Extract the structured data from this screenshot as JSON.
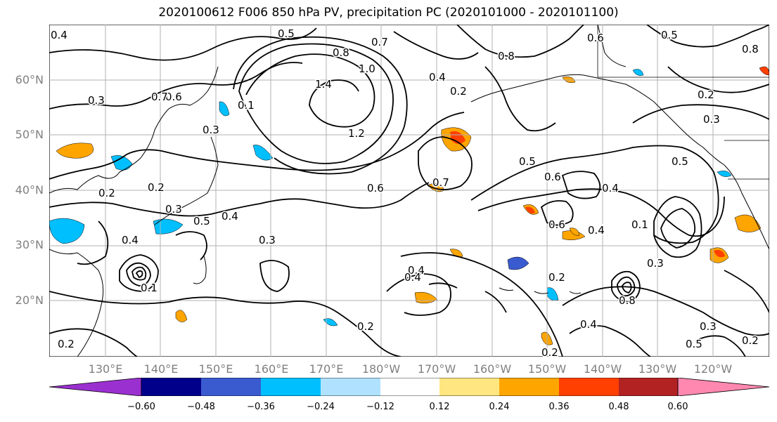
{
  "title": "2020100612 F006 850 hPa PV, precipitation PC (2020101000 - 2020101100)",
  "lat_labels": [
    "60°N",
    "50°N",
    "40°N",
    "30°N",
    "20°N"
  ],
  "lon_labels": [
    "130°E",
    "140°E",
    "150°E",
    "160°E",
    "170°E",
    "180°W",
    "170°W",
    "160°W",
    "150°W",
    "140°W",
    "130°W",
    "120°W"
  ],
  "colorbar": {
    "ticks": [
      "−0.60",
      "−0.48",
      "−0.36",
      "−0.24",
      "−0.12",
      "0.12",
      "0.24",
      "0.36",
      "0.48",
      "0.60"
    ],
    "colors": [
      "#9b30d0",
      "#00008b",
      "#3a5bd0",
      "#00bfff",
      "#b0e2ff",
      "#ffffff",
      "#ffe680",
      "#ffa500",
      "#ff4000",
      "#b22222",
      "#ff88b0"
    ]
  },
  "contour_labels": [
    "0.4",
    "0.5",
    "0.7",
    "0.6",
    "0.8",
    "1.0",
    "1.4",
    "0.3",
    "0.6",
    "0.7",
    "0.3",
    "0.8",
    "0.2",
    "0.1",
    "1.2",
    "0.6",
    "0.7",
    "0.5",
    "0.6",
    "0.4",
    "0.5",
    "0.4",
    "0.3",
    "0.5",
    "0.2",
    "0.3",
    "0.4",
    "0.2",
    "0.6",
    "0.4",
    "0.3",
    "0.4",
    "0.1",
    "0.2",
    "0.3",
    "0.2",
    "0.8",
    "0.5",
    "0.4",
    "0.2",
    "0.1",
    "0.2",
    "0.4",
    "0.3",
    "0.5",
    "0.2",
    "0.4",
    "0.2",
    "0.8"
  ],
  "colors": {
    "grid": "#b0b0b0",
    "coast": "#000000",
    "contour": "#000000",
    "axis_label": "#808080"
  }
}
